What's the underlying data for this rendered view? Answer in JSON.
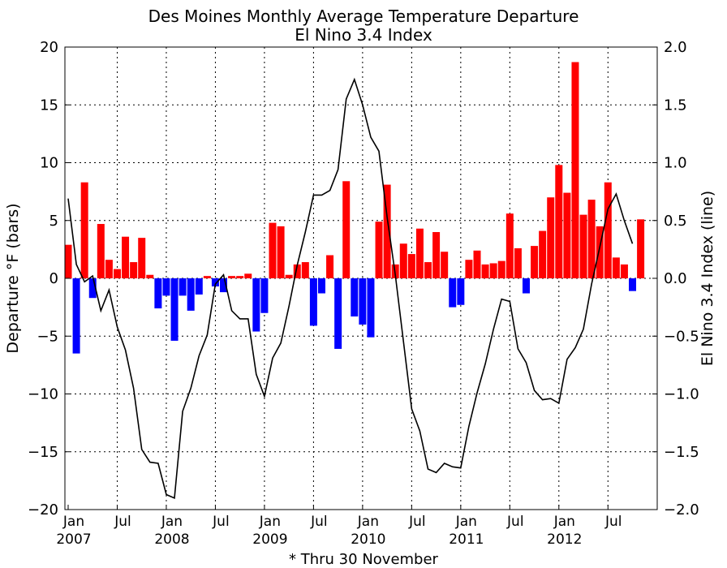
{
  "chart_data": {
    "type": "bar",
    "title": "Des Moines Monthly Average Temperature Departure",
    "subtitle": "El Nino 3.4 Index",
    "xlabel": "* Thru 30 November",
    "ylabel": "Departure °F (bars)",
    "y2label": "El Nino 3.4 Index (line)",
    "ylim": [
      -20,
      20
    ],
    "y2lim": [
      -2.0,
      2.0
    ],
    "yticks": [
      "20",
      "15",
      "10",
      "5",
      "0",
      "−5",
      "−10",
      "−15",
      "−20"
    ],
    "y2ticks": [
      "2.0",
      "1.5",
      "1.0",
      "0.5",
      "0.0",
      "−0.5",
      "−1.0",
      "−1.5",
      "−2.0"
    ],
    "xticks": [
      {
        "month": "Jan",
        "year": "2007"
      },
      {
        "month": "Jul",
        "year": ""
      },
      {
        "month": "Jan",
        "year": "2008"
      },
      {
        "month": "Jul",
        "year": ""
      },
      {
        "month": "Jan",
        "year": "2009"
      },
      {
        "month": "Jul",
        "year": ""
      },
      {
        "month": "Jan",
        "year": "2010"
      },
      {
        "month": "Jul",
        "year": ""
      },
      {
        "month": "Jan",
        "year": "2011"
      },
      {
        "month": "Jul",
        "year": ""
      },
      {
        "month": "Jan",
        "year": "2012"
      },
      {
        "month": "Jul",
        "year": ""
      }
    ],
    "grid": true,
    "colors": {
      "positive": "#ff0000",
      "negative": "#0000ff",
      "line": "#000000"
    },
    "months": [
      "2007-01",
      "2007-02",
      "2007-03",
      "2007-04",
      "2007-05",
      "2007-06",
      "2007-07",
      "2007-08",
      "2007-09",
      "2007-10",
      "2007-11",
      "2007-12",
      "2008-01",
      "2008-02",
      "2008-03",
      "2008-04",
      "2008-05",
      "2008-06",
      "2008-07",
      "2008-08",
      "2008-09",
      "2008-10",
      "2008-11",
      "2008-12",
      "2009-01",
      "2009-02",
      "2009-03",
      "2009-04",
      "2009-05",
      "2009-06",
      "2009-07",
      "2009-08",
      "2009-09",
      "2009-10",
      "2009-11",
      "2009-12",
      "2010-01",
      "2010-02",
      "2010-03",
      "2010-04",
      "2010-05",
      "2010-06",
      "2010-07",
      "2010-08",
      "2010-09",
      "2010-10",
      "2010-11",
      "2010-12",
      "2011-01",
      "2011-02",
      "2011-03",
      "2011-04",
      "2011-05",
      "2011-06",
      "2011-07",
      "2011-08",
      "2011-09",
      "2011-10",
      "2011-11",
      "2011-12",
      "2012-01",
      "2012-02",
      "2012-03",
      "2012-04",
      "2012-05",
      "2012-06",
      "2012-07",
      "2012-08",
      "2012-09",
      "2012-10",
      "2012-11"
    ],
    "series": [
      {
        "name": "Departure",
        "values": [
          2.9,
          -6.5,
          8.3,
          -1.7,
          4.7,
          1.6,
          0.8,
          3.6,
          1.4,
          3.5,
          0.3,
          -2.6,
          -1.5,
          -5.4,
          -1.5,
          -2.8,
          -1.4,
          0.2,
          -0.7,
          -1.2,
          0.2,
          0.2,
          0.4,
          -4.6,
          -3.0,
          4.8,
          4.5,
          0.3,
          1.2,
          1.4,
          -4.1,
          -1.3,
          2.0,
          -6.1,
          8.4,
          -3.3,
          -4.0,
          -5.1,
          4.9,
          8.1,
          1.2,
          3.0,
          2.1,
          4.3,
          1.4,
          4.0,
          2.3,
          -2.5,
          -2.3,
          1.6,
          2.4,
          1.2,
          1.3,
          1.5,
          5.6,
          2.6,
          -1.3,
          2.8,
          4.1,
          7.0,
          9.8,
          7.4,
          18.7,
          5.5,
          6.8,
          4.5,
          8.3,
          1.8,
          1.2,
          -1.1,
          5.1
        ]
      },
      {
        "name": "El Nino 3.4 Index",
        "values": [
          0.69,
          0.12,
          -0.03,
          0.02,
          -0.28,
          -0.1,
          -0.42,
          -0.62,
          -0.95,
          -1.48,
          -1.59,
          -1.6,
          -1.87,
          -1.9,
          -1.15,
          -0.95,
          -0.67,
          -0.49,
          -0.05,
          0.03,
          -0.28,
          -0.35,
          -0.35,
          -0.83,
          -1.02,
          -0.69,
          -0.56,
          -0.24,
          0.11,
          0.4,
          0.72,
          0.72,
          0.76,
          0.94,
          1.55,
          1.72,
          1.5,
          1.22,
          1.1,
          0.53,
          0.03,
          -0.55,
          -1.13,
          -1.32,
          -1.65,
          -1.68,
          -1.6,
          -1.63,
          -1.64,
          -1.28,
          -0.99,
          -0.74,
          -0.44,
          -0.18,
          -0.2,
          -0.61,
          -0.73,
          -0.97,
          -1.05,
          -1.04,
          -1.08,
          -0.7,
          -0.6,
          -0.44,
          -0.05,
          0.27,
          0.6,
          0.73,
          0.5,
          0.3
        ]
      }
    ]
  }
}
